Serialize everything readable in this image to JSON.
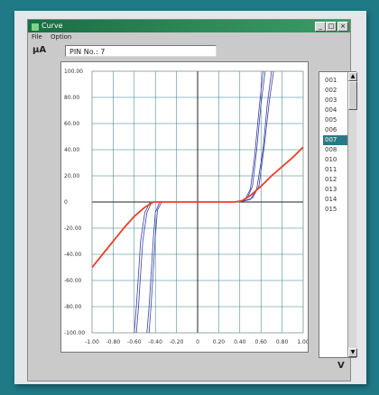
{
  "window": {
    "title": "Curve",
    "minimize_label": "_",
    "maximize_label": "□",
    "close_label": "×"
  },
  "menu": {
    "items": [
      "File",
      "Option"
    ]
  },
  "y_unit": "µA",
  "x_unit": "V",
  "pin_label": "PIN No.: 7",
  "list": {
    "items": [
      "001",
      "002",
      "003",
      "004",
      "005",
      "006",
      "007",
      "008",
      "010",
      "011",
      "012",
      "013",
      "014",
      "015"
    ],
    "selected_index": 6
  },
  "colors": {
    "selected_pin_curve": "#e8412a",
    "other_pin_curves": "#3a3fa6",
    "grid": "#2a7a86",
    "selection": "#2a7a86"
  },
  "chart_data": {
    "type": "line",
    "xlim": [
      -1.0,
      1.0
    ],
    "ylim": [
      -100,
      100
    ],
    "x_ticks": [
      "-1.00",
      "-0.80",
      "-0.60",
      "-0.40",
      "-0.20",
      "0",
      "0.20",
      "0.40",
      "0.60",
      "0.80",
      "1.00"
    ],
    "y_ticks": [
      "100.00",
      "80.00",
      "60.00",
      "40.00",
      "20.00",
      "0",
      "-20.00",
      "-40.00",
      "-60.00",
      "-80.00",
      "-100.00"
    ],
    "grid": true,
    "series": [
      {
        "color_key": "selected_pin_curve",
        "x": [
          -1.0,
          -0.9,
          -0.8,
          -0.7,
          -0.6,
          -0.5,
          -0.42,
          -0.3,
          -0.2,
          0,
          0.2,
          0.35,
          0.42,
          0.5,
          0.6,
          0.7,
          0.8,
          0.9,
          1.0
        ],
        "y": [
          -50,
          -40,
          -30,
          -20,
          -11,
          -4,
          0,
          0,
          0,
          0,
          0,
          0,
          1,
          5,
          12,
          20,
          27,
          34,
          42
        ]
      },
      {
        "color_key": "other_pin_curves",
        "x": [
          -0.6,
          -0.58,
          -0.56,
          -0.54,
          -0.5,
          -0.45,
          -0.4,
          -0.2,
          0,
          0.2,
          0.4,
          0.45,
          0.5,
          0.54,
          0.58,
          0.62
        ],
        "y": [
          -100,
          -80,
          -55,
          -30,
          -8,
          0,
          0,
          0,
          0,
          0,
          0,
          2,
          10,
          35,
          70,
          100
        ]
      },
      {
        "color_key": "other_pin_curves",
        "x": [
          -0.58,
          -0.56,
          -0.54,
          -0.52,
          -0.48,
          -0.44,
          -0.4,
          -0.2,
          0,
          0.2,
          0.4,
          0.47,
          0.52,
          0.56,
          0.6,
          0.64
        ],
        "y": [
          -100,
          -80,
          -55,
          -30,
          -8,
          -1,
          0,
          0,
          0,
          0,
          0,
          3,
          12,
          40,
          75,
          100
        ]
      },
      {
        "color_key": "other_pin_curves",
        "x": [
          -0.48,
          -0.46,
          -0.44,
          -0.42,
          -0.4,
          -0.36,
          -0.3,
          -0.2,
          0,
          0.2,
          0.4,
          0.5,
          0.56,
          0.62,
          0.66,
          0.7
        ],
        "y": [
          -100,
          -80,
          -55,
          -28,
          -8,
          0,
          0,
          0,
          0,
          0,
          0,
          2,
          10,
          40,
          75,
          100
        ]
      },
      {
        "color_key": "other_pin_curves",
        "x": [
          -0.46,
          -0.44,
          -0.42,
          -0.4,
          -0.38,
          -0.34,
          -0.3,
          -0.2,
          0,
          0.2,
          0.4,
          0.52,
          0.58,
          0.63,
          0.68,
          0.72
        ],
        "y": [
          -100,
          -78,
          -52,
          -26,
          -6,
          0,
          0,
          0,
          0,
          0,
          0,
          3,
          12,
          42,
          78,
          100
        ]
      }
    ]
  }
}
